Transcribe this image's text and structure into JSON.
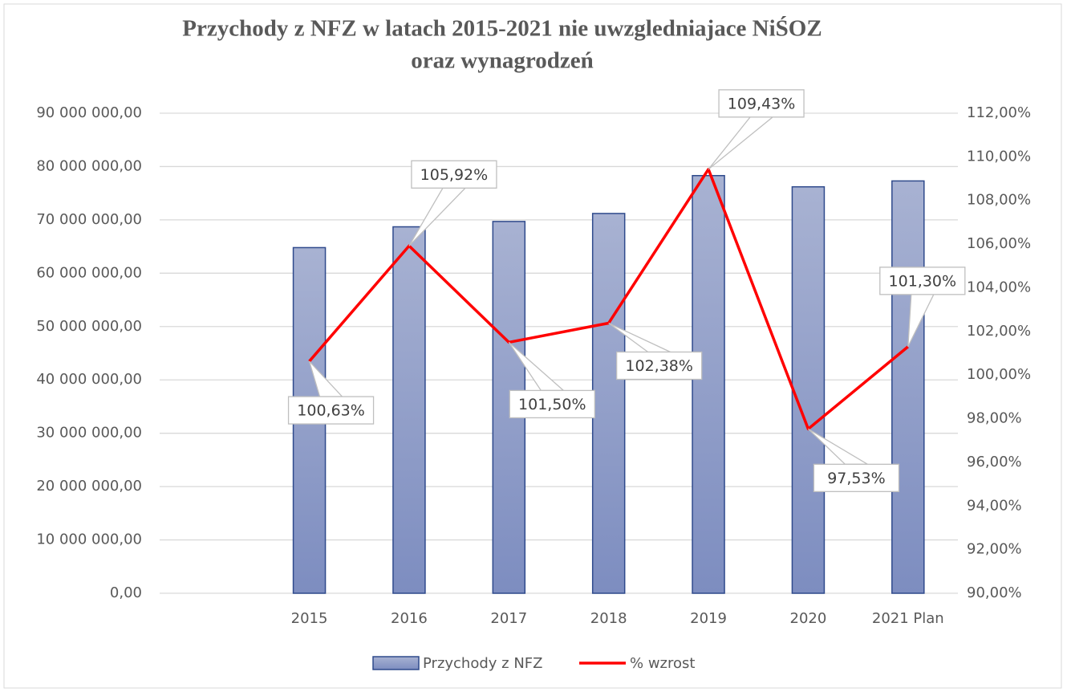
{
  "chart_data": {
    "type": "bar-line",
    "title": [
      "Przychody z NFZ w latach 2015-2021 nie uwzgledniajace NiŚOZ",
      "oraz wynagrodzeń"
    ],
    "categories": [
      null,
      "2015",
      "2016",
      "2017",
      "2018",
      "2019",
      "2020",
      "2021 Plan"
    ],
    "series": [
      {
        "name": "Przychody z NFZ",
        "type": "bar",
        "color": "#8e9cc8",
        "values": [
          null,
          64800000,
          68700000,
          69700000,
          71200000,
          78300000,
          76200000,
          77300000
        ]
      },
      {
        "name": "% wzrost",
        "type": "line",
        "axis": "y2",
        "color": "#ff0000",
        "values": [
          null,
          100.63,
          105.92,
          101.5,
          102.38,
          109.43,
          97.53,
          101.3
        ],
        "value_labels": [
          null,
          "100,63%",
          "105,92%",
          "101,50%",
          "102,38%",
          "109,43%",
          "97,53%",
          "101,30%"
        ]
      }
    ],
    "ylim": [
      0,
      90000000
    ],
    "yticks": [
      {
        "value": 0,
        "label": "0,00"
      },
      {
        "value": 10000000,
        "label": "10 000 000,00"
      },
      {
        "value": 20000000,
        "label": "20 000 000,00"
      },
      {
        "value": 30000000,
        "label": "30 000 000,00"
      },
      {
        "value": 40000000,
        "label": "40 000 000,00"
      },
      {
        "value": 50000000,
        "label": "50 000 000,00"
      },
      {
        "value": 60000000,
        "label": "60 000 000,00"
      },
      {
        "value": 70000000,
        "label": "70 000 000,00"
      },
      {
        "value": 80000000,
        "label": "80 000 000,00"
      },
      {
        "value": 90000000,
        "label": "90 000 000,00"
      }
    ],
    "y2lim": [
      90,
      112
    ],
    "y2ticks": [
      {
        "value": 90,
        "label": "90,00%"
      },
      {
        "value": 92,
        "label": "92,00%"
      },
      {
        "value": 94,
        "label": "94,00%"
      },
      {
        "value": 96,
        "label": "96,00%"
      },
      {
        "value": 98,
        "label": "98,00%"
      },
      {
        "value": 100,
        "label": "100,00%"
      },
      {
        "value": 102,
        "label": "102,00%"
      },
      {
        "value": 104,
        "label": "104,00%"
      },
      {
        "value": 106,
        "label": "106,00%"
      },
      {
        "value": 108,
        "label": "108,00%"
      },
      {
        "value": 110,
        "label": "110,00%"
      },
      {
        "value": 112,
        "label": "112,00%"
      }
    ],
    "grid": true,
    "legend": "bottom"
  }
}
